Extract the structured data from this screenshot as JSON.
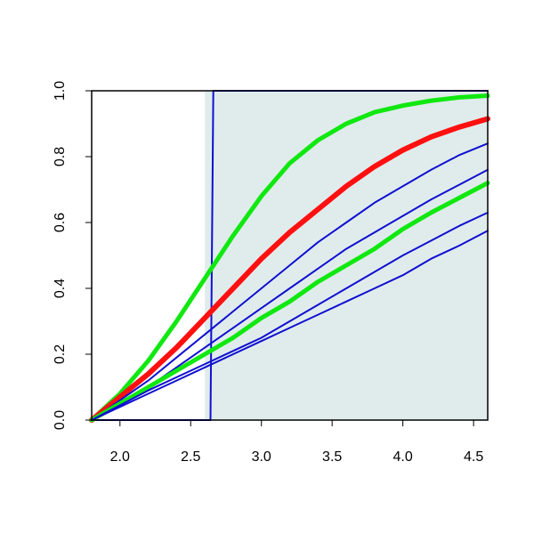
{
  "chart_data": {
    "type": "line",
    "title": "",
    "xlabel": "",
    "ylabel": "",
    "xlim": [
      1.8,
      4.6
    ],
    "ylim": [
      0,
      1
    ],
    "x_ticks": [
      2.0,
      2.5,
      3.0,
      3.5,
      4.0,
      4.5
    ],
    "x_tick_labels": [
      "2.0",
      "2.5",
      "3.0",
      "3.5",
      "4.0",
      "4.5"
    ],
    "y_ticks": [
      0,
      0.2,
      0.4,
      0.6,
      0.8,
      1.0
    ],
    "y_tick_labels": [
      "0.0",
      "0.2",
      "0.4",
      "0.6",
      "0.8",
      "1.0"
    ],
    "grid": false,
    "legend": "none",
    "shaded_region": {
      "x": [
        2.6,
        4.6
      ],
      "y": [
        0,
        1
      ],
      "color": "#e0ecec"
    },
    "colors": {
      "blue": "#1010d0",
      "red": "#ff1010",
      "green": "#10e810",
      "axis": "#000000"
    },
    "series": [
      {
        "color": "blue",
        "width": 2,
        "x": [
          1.8,
          2.64,
          2.66,
          4.6
        ],
        "y": [
          0.0,
          0.0,
          1.0,
          1.0
        ]
      },
      {
        "color": "green",
        "width": 5,
        "x": [
          1.8,
          2.0,
          2.2,
          2.4,
          2.6,
          2.8,
          3.0,
          3.2,
          3.4,
          3.6,
          3.8,
          4.0,
          4.2,
          4.4,
          4.6
        ],
        "y": [
          0.0,
          0.08,
          0.18,
          0.3,
          0.43,
          0.56,
          0.68,
          0.78,
          0.85,
          0.9,
          0.935,
          0.955,
          0.97,
          0.98,
          0.985
        ]
      },
      {
        "color": "red",
        "width": 6,
        "x": [
          1.8,
          2.0,
          2.2,
          2.4,
          2.6,
          2.8,
          3.0,
          3.2,
          3.4,
          3.6,
          3.8,
          4.0,
          4.2,
          4.4,
          4.6
        ],
        "y": [
          0.0,
          0.07,
          0.14,
          0.22,
          0.31,
          0.4,
          0.49,
          0.57,
          0.64,
          0.71,
          0.77,
          0.82,
          0.86,
          0.89,
          0.915
        ]
      },
      {
        "color": "blue",
        "width": 2,
        "x": [
          1.8,
          2.0,
          2.2,
          2.4,
          2.6,
          2.8,
          3.0,
          3.2,
          3.4,
          3.6,
          3.8,
          4.0,
          4.2,
          4.4,
          4.6
        ],
        "y": [
          0.0,
          0.06,
          0.12,
          0.19,
          0.26,
          0.33,
          0.4,
          0.47,
          0.54,
          0.6,
          0.66,
          0.71,
          0.76,
          0.805,
          0.84
        ]
      },
      {
        "color": "blue",
        "width": 2,
        "x": [
          1.8,
          2.0,
          2.2,
          2.4,
          2.6,
          2.8,
          3.0,
          3.2,
          3.4,
          3.6,
          3.8,
          4.0,
          4.2,
          4.4,
          4.6
        ],
        "y": [
          0.0,
          0.05,
          0.1,
          0.16,
          0.22,
          0.28,
          0.34,
          0.4,
          0.46,
          0.52,
          0.57,
          0.62,
          0.67,
          0.715,
          0.76
        ]
      },
      {
        "color": "green",
        "width": 5,
        "x": [
          1.8,
          2.0,
          2.2,
          2.4,
          2.6,
          2.8,
          3.0,
          3.2,
          3.4,
          3.6,
          3.8,
          4.0,
          4.2,
          4.4,
          4.6
        ],
        "y": [
          0.0,
          0.05,
          0.1,
          0.15,
          0.2,
          0.25,
          0.31,
          0.36,
          0.42,
          0.47,
          0.52,
          0.58,
          0.63,
          0.675,
          0.72
        ]
      },
      {
        "color": "blue",
        "width": 2,
        "x": [
          1.8,
          2.0,
          2.2,
          2.4,
          2.6,
          2.8,
          3.0,
          3.2,
          3.4,
          3.6,
          3.8,
          4.0,
          4.2,
          4.4,
          4.6
        ],
        "y": [
          0.0,
          0.045,
          0.09,
          0.13,
          0.17,
          0.21,
          0.25,
          0.3,
          0.35,
          0.4,
          0.45,
          0.5,
          0.545,
          0.59,
          0.63
        ]
      },
      {
        "color": "blue",
        "width": 2,
        "x": [
          1.8,
          2.0,
          2.2,
          2.4,
          2.6,
          2.8,
          3.0,
          3.2,
          3.4,
          3.6,
          3.8,
          4.0,
          4.2,
          4.4,
          4.6
        ],
        "y": [
          0.0,
          0.04,
          0.08,
          0.12,
          0.16,
          0.2,
          0.24,
          0.28,
          0.32,
          0.36,
          0.4,
          0.44,
          0.49,
          0.53,
          0.575
        ]
      }
    ]
  }
}
